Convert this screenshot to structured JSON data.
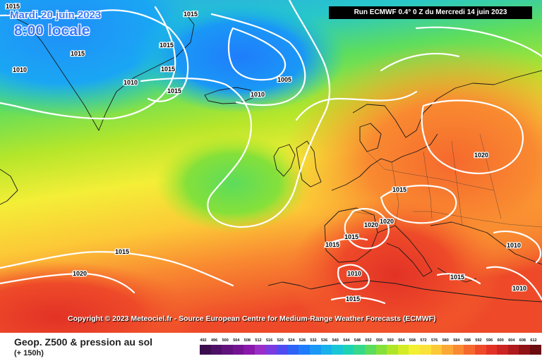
{
  "overlay": {
    "date": "Mardi 20 juin 2023",
    "local_time": "8:00 locale",
    "run_info": "Run ECMWF 0.4° 0 Z du Mercredi 14 juin 2023",
    "copyright": "Copyright © 2023 Meteociel.fr - Source European Centre for Medium-Range Weather Forecasts (ECMWF)"
  },
  "footer": {
    "title": "Geop. Z500 & pression au sol",
    "subtitle": "(+ 150h)"
  },
  "scale": {
    "values": [
      "492",
      "496",
      "500",
      "504",
      "508",
      "512",
      "516",
      "520",
      "524",
      "528",
      "532",
      "536",
      "540",
      "544",
      "548",
      "552",
      "556",
      "560",
      "564",
      "568",
      "572",
      "576",
      "580",
      "584",
      "588",
      "592",
      "596",
      "600",
      "604",
      "608",
      "612"
    ],
    "colors": [
      "#3b0d4f",
      "#4d1066",
      "#61127c",
      "#741492",
      "#8a18aa",
      "#9a2ec8",
      "#7a3be0",
      "#4e4cf0",
      "#2f62f6",
      "#1f7dfb",
      "#1a98f6",
      "#17b1ec",
      "#19c6d8",
      "#1dd3b4",
      "#36d88c",
      "#5cdc5c",
      "#85e03a",
      "#aee627",
      "#d3ec25",
      "#f2f031",
      "#fbe23a",
      "#fcc937",
      "#fba934",
      "#f98a31",
      "#f5692d",
      "#ee4a29",
      "#e23226",
      "#cc2421",
      "#b01a1c",
      "#8e1216",
      "#6a0c10"
    ]
  },
  "isobar_labels": [
    {
      "text": "1015",
      "id": "tl"
    },
    {
      "text": "1015",
      "id": "top"
    },
    {
      "text": "1015",
      "id": "g1"
    },
    {
      "text": "1010",
      "id": "g2"
    },
    {
      "text": "1015",
      "id": "g3"
    },
    {
      "text": "1015",
      "id": "g4"
    },
    {
      "text": "1010",
      "id": "g5"
    },
    {
      "text": "1015",
      "id": "g6"
    },
    {
      "text": "1005",
      "id": "l1"
    },
    {
      "text": "1010",
      "id": "l2"
    },
    {
      "text": "1020",
      "id": "e1"
    },
    {
      "text": "1015",
      "id": "e2"
    },
    {
      "text": "1020",
      "id": "e3"
    },
    {
      "text": "1020",
      "id": "e4"
    },
    {
      "text": "1015",
      "id": "e5"
    },
    {
      "text": "1015",
      "id": "e6"
    },
    {
      "text": "1010",
      "id": "e7"
    },
    {
      "text": "1010",
      "id": "e8"
    },
    {
      "text": "1015",
      "id": "e9"
    },
    {
      "text": "1010",
      "id": "e10"
    },
    {
      "text": "1015",
      "id": "e11"
    },
    {
      "text": "1015",
      "id": "a1"
    },
    {
      "text": "1020",
      "id": "a2"
    }
  ]
}
